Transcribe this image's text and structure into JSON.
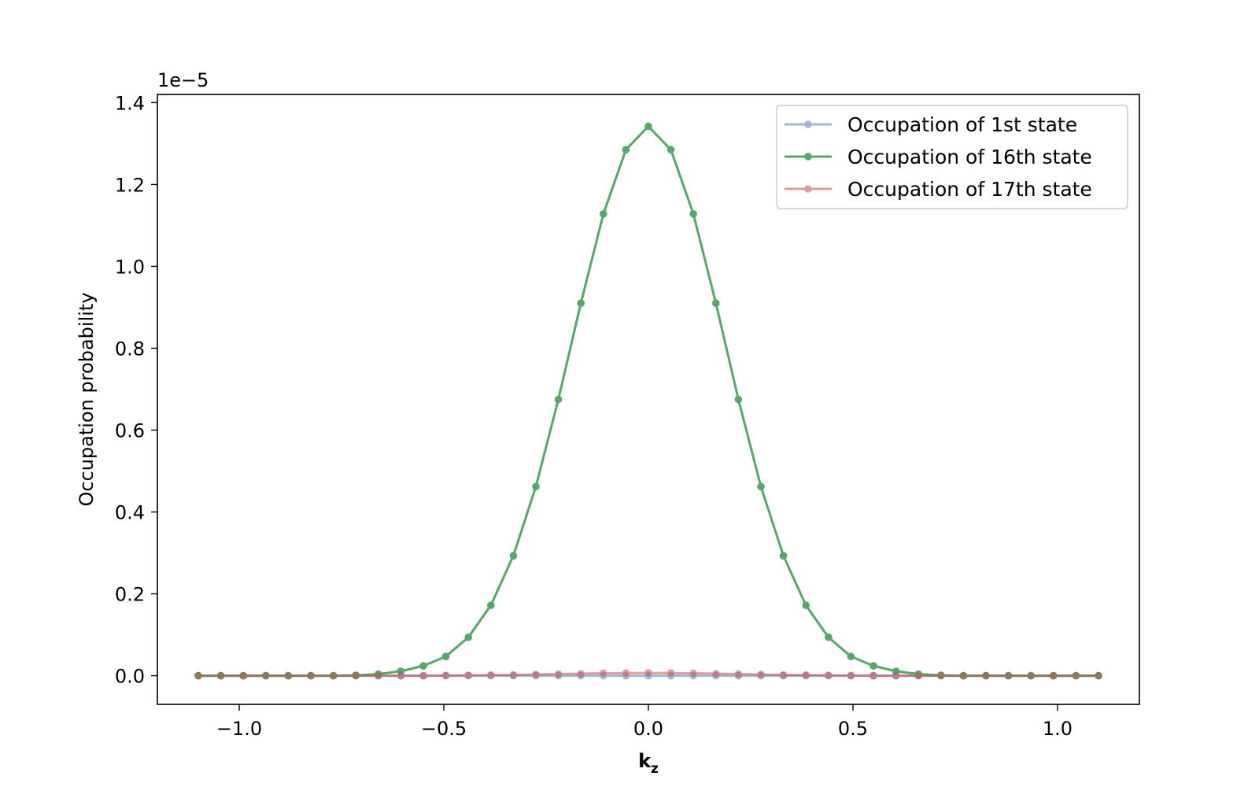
{
  "chart_data": {
    "type": "line",
    "xlabel": "k",
    "xlabel_subscript": "z",
    "ylabel": "Occupation probability",
    "offset_text": "1e−5",
    "xlim": [
      -1.2,
      1.2
    ],
    "ylim": [
      -0.07,
      1.42
    ],
    "y_scale_factor": 1e-05,
    "x_ticks": [
      -1.0,
      -0.5,
      0.0,
      0.5,
      1.0
    ],
    "x_tick_labels": [
      "−1.0",
      "−0.5",
      "0.0",
      "0.5",
      "1.0"
    ],
    "y_ticks": [
      0.0,
      0.2,
      0.4,
      0.6,
      0.8,
      1.0,
      1.2,
      1.4
    ],
    "y_tick_labels": [
      "0.0",
      "0.2",
      "0.4",
      "0.6",
      "0.8",
      "1.0",
      "1.2",
      "1.4"
    ],
    "grid": false,
    "legend_position": "top-right",
    "x": [
      -1.1,
      -1.045,
      -0.99,
      -0.935,
      -0.88,
      -0.825,
      -0.77,
      -0.715,
      -0.66,
      -0.605,
      -0.55,
      -0.495,
      -0.44,
      -0.385,
      -0.33,
      -0.275,
      -0.22,
      -0.165,
      -0.11,
      -0.055,
      0.0,
      0.055,
      0.11,
      0.165,
      0.22,
      0.275,
      0.33,
      0.385,
      0.44,
      0.495,
      0.55,
      0.605,
      0.66,
      0.715,
      0.77,
      0.825,
      0.88,
      0.935,
      0.99,
      1.045,
      1.1
    ],
    "series": [
      {
        "name": "Occupation of 1st state",
        "color": "#4c72b0",
        "opacity": 0.5,
        "values": [
          0,
          0,
          0,
          0,
          0,
          0,
          0,
          0,
          0,
          0,
          0,
          0,
          0,
          0,
          0,
          0,
          0,
          0,
          0,
          0,
          0,
          0,
          0,
          0,
          0,
          0,
          0,
          0,
          0,
          0,
          0,
          0,
          0,
          0,
          0,
          0,
          0,
          0,
          0,
          0,
          0
        ]
      },
      {
        "name": "Occupation of 16th state",
        "color": "#55a868",
        "opacity": 1.0,
        "values": [
          0,
          0,
          0,
          0,
          0,
          0,
          0,
          0.001,
          0.004,
          0.011,
          0.024,
          0.047,
          0.094,
          0.172,
          0.293,
          0.462,
          0.675,
          0.91,
          1.128,
          1.285,
          1.342,
          1.285,
          1.128,
          0.91,
          0.675,
          0.462,
          0.293,
          0.172,
          0.094,
          0.047,
          0.024,
          0.011,
          0.004,
          0.001,
          0,
          0,
          0,
          0,
          0,
          0,
          0
        ]
      },
      {
        "name": "Occupation of 17th state",
        "color": "#c44e52",
        "opacity": 0.55,
        "values": [
          0,
          0,
          0,
          0,
          0,
          0,
          0,
          0,
          0,
          0,
          0,
          0.0005,
          0.001,
          0.0015,
          0.002,
          0.003,
          0.004,
          0.005,
          0.006,
          0.0065,
          0.007,
          0.0065,
          0.006,
          0.005,
          0.004,
          0.003,
          0.002,
          0.0015,
          0.001,
          0.0005,
          0,
          0,
          0,
          0,
          0,
          0,
          0,
          0,
          0,
          0,
          0
        ]
      }
    ]
  }
}
